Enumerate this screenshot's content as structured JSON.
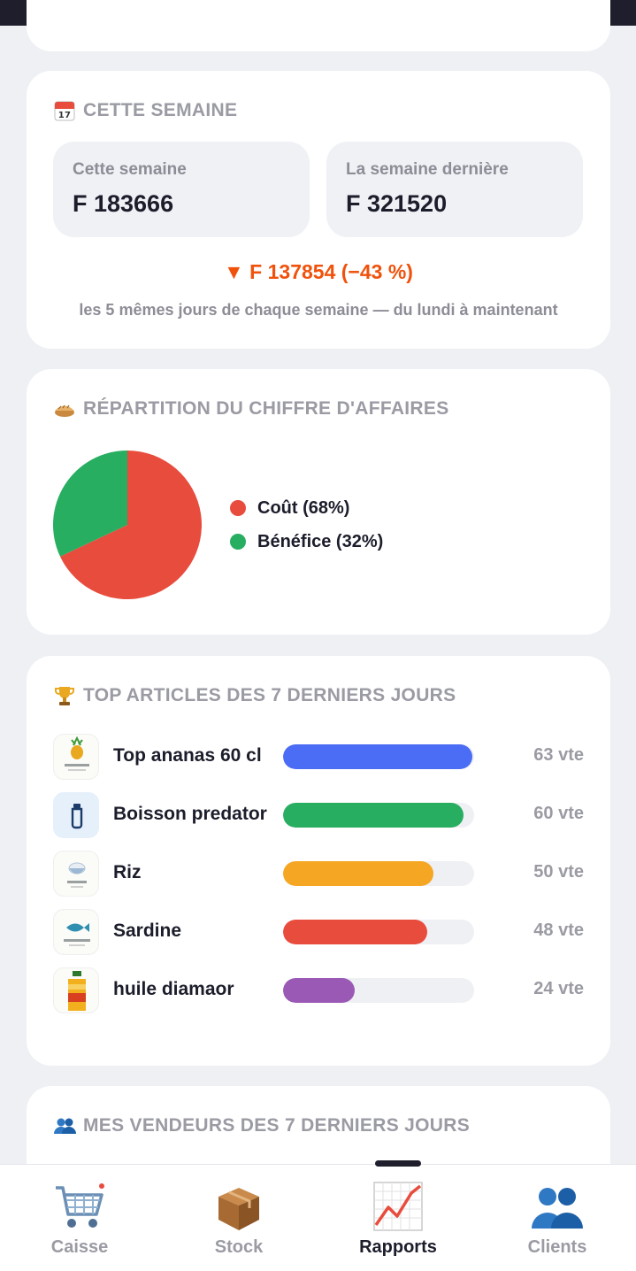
{
  "week": {
    "title": "CETTE SEMAINE",
    "current_label": "Cette semaine",
    "current_value": "F 183666",
    "previous_label": "La semaine dernière",
    "previous_value": "F 321520",
    "delta": "▼ F 137854 (−43 %)",
    "note": "les 5 mêmes jours de chaque semaine — du lundi à maintenant"
  },
  "breakdown": {
    "title": "RÉPARTITION DU CHIFFRE D'AFFAIRES",
    "legend": [
      {
        "label": "Coût (68%)",
        "color": "#e84c3d"
      },
      {
        "label": "Bénéfice (32%)",
        "color": "#27ae60"
      }
    ]
  },
  "chart_data": {
    "type": "pie",
    "values": [
      {
        "label": "Coût",
        "value": 68,
        "color": "#e84c3d"
      },
      {
        "label": "Bénéfice",
        "value": 32,
        "color": "#27ae60"
      }
    ]
  },
  "top_articles": {
    "title": "TOP ARTICLES DES 7 DERNIERS JOURS",
    "items": [
      {
        "name": "Top ananas 60 cl",
        "count": "63 vte",
        "sales": 63,
        "color": "#4b6cf5",
        "icon": "pineapple-drink-icon"
      },
      {
        "name": "Boisson predator",
        "count": "60 vte",
        "sales": 60,
        "color": "#27ae60",
        "icon": "bottle-icon"
      },
      {
        "name": "Riz",
        "count": "50 vte",
        "sales": 50,
        "color": "#f5a623",
        "icon": "rice-icon"
      },
      {
        "name": "Sardine",
        "count": "48 vte",
        "sales": 48,
        "color": "#e84c3d",
        "icon": "fish-icon"
      },
      {
        "name": "huile diamaor",
        "count": "24 vte",
        "sales": 24,
        "color": "#9b59b6",
        "icon": "oil-bottle-icon"
      }
    ]
  },
  "sellers": {
    "title": "MES VENDEURS DES 7 DERNIERS JOURS"
  },
  "nav": {
    "items": [
      {
        "label": "Caisse",
        "icon": "cart-icon"
      },
      {
        "label": "Stock",
        "icon": "box-icon"
      },
      {
        "label": "Rapports",
        "icon": "chart-up-icon"
      },
      {
        "label": "Clients",
        "icon": "people-icon"
      }
    ],
    "active": "Rapports"
  }
}
